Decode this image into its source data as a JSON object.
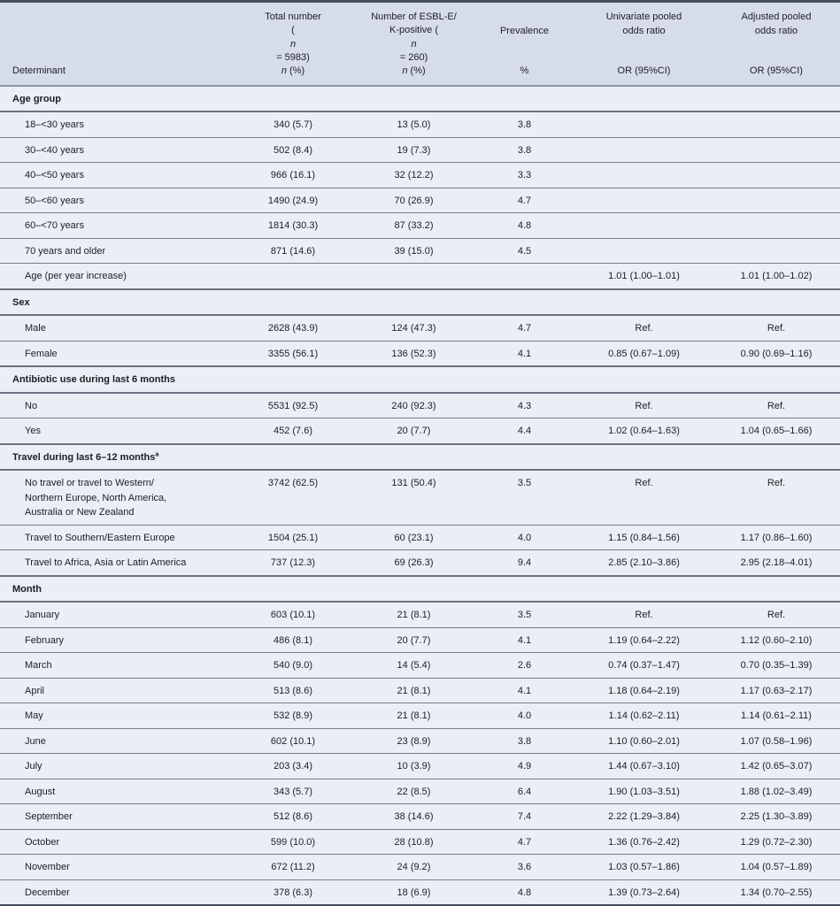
{
  "meta": {
    "content_type": "journal-article statistical table",
    "colors": {
      "header_band_bg": "#d7dcea",
      "body_bg": "#ebeef5",
      "frame_rule": "#464d5b",
      "row_rule": "#767c89",
      "section_rule": "#6b7180",
      "text": "#1b1e24"
    }
  },
  "table": {
    "header": {
      "columns": [
        {
          "id": "determinant",
          "title": "",
          "sub": "Determinant"
        },
        {
          "id": "total-number",
          "title": "Total number\n(*n* = 5983)",
          "sub": "*n* (%)"
        },
        {
          "id": "esbl-positive",
          "title": "Number of ESBL-E/\nK-positive (*n* = 260)",
          "sub": "*n* (%)"
        },
        {
          "id": "prevalence",
          "title": "Prevalence",
          "sub": "%"
        },
        {
          "id": "univariate-or",
          "title": "Univariate pooled\nodds ratio",
          "sub": "OR (95%CI)"
        },
        {
          "id": "adjusted-or",
          "title": "Adjusted pooled\nodds ratio",
          "sub": "OR (95%CI)"
        }
      ]
    },
    "sections": [
      {
        "title": "Age group",
        "sup": "",
        "rows": [
          {
            "label": "18–<30 years",
            "cells": [
              "340 (5.7)",
              "13 (5.0)",
              "3.8",
              "",
              ""
            ]
          },
          {
            "label": "30–<40 years",
            "cells": [
              "502 (8.4)",
              "19 (7.3)",
              "3.8",
              "",
              ""
            ]
          },
          {
            "label": "40–<50 years",
            "cells": [
              "966 (16.1)",
              "32 (12.2)",
              "3.3",
              "",
              ""
            ]
          },
          {
            "label": "50–<60 years",
            "cells": [
              "1490 (24.9)",
              "70 (26.9)",
              "4.7",
              "",
              ""
            ]
          },
          {
            "label": "60–<70 years",
            "cells": [
              "1814 (30.3)",
              "87 (33.2)",
              "4.8",
              "",
              ""
            ]
          },
          {
            "label": "70 years and older",
            "cells": [
              "871 (14.6)",
              "39 (15.0)",
              "4.5",
              "",
              ""
            ]
          },
          {
            "label": "Age (per year increase)",
            "cells": [
              "",
              "",
              "",
              "1.01 (1.00–1.01)",
              "1.01 (1.00–1.02)"
            ]
          }
        ]
      },
      {
        "title": "Sex",
        "sup": "",
        "rows": [
          {
            "label": "Male",
            "cells": [
              "2628 (43.9)",
              "124 (47.3)",
              "4.7",
              "Ref.",
              "Ref."
            ]
          },
          {
            "label": "Female",
            "cells": [
              "3355 (56.1)",
              "136 (52.3)",
              "4.1",
              "0.85 (0.67–1.09)",
              "0.90 (0.69–1.16)"
            ]
          }
        ]
      },
      {
        "title": "Antibiotic use during last 6 months",
        "sup": "",
        "rows": [
          {
            "label": "No",
            "cells": [
              "5531 (92.5)",
              "240 (92.3)",
              "4.3",
              "Ref.",
              "Ref."
            ]
          },
          {
            "label": "Yes",
            "cells": [
              "452 (7.6)",
              "20 (7.7)",
              "4.4",
              "1.02 (0.64–1.63)",
              "1.04 (0.65–1.66)"
            ]
          }
        ]
      },
      {
        "title": "Travel during last 6–12 months",
        "sup": "a",
        "rows": [
          {
            "label": "No travel or travel to Western/\nNorthern Europe, North America,\nAustralia or New Zealand",
            "cells": [
              "3742 (62.5)",
              "131 (50.4)",
              "3.5",
              "Ref.",
              "Ref."
            ]
          },
          {
            "label": "Travel to Southern/Eastern Europe",
            "cells": [
              "1504 (25.1)",
              "60 (23.1)",
              "4.0",
              "1.15 (0.84–1.56)",
              "1.17 (0.86–1.60)"
            ]
          },
          {
            "label": "Travel to Africa, Asia or Latin America",
            "cells": [
              "737 (12.3)",
              "69 (26.3)",
              "9.4",
              "2.85 (2.10–3.86)",
              "2.95 (2.18–4.01)"
            ]
          }
        ]
      },
      {
        "title": "Month",
        "sup": "",
        "rows": [
          {
            "label": "January",
            "cells": [
              "603 (10.1)",
              "21 (8.1)",
              "3.5",
              "Ref.",
              "Ref."
            ]
          },
          {
            "label": "February",
            "cells": [
              "486 (8.1)",
              "20 (7.7)",
              "4.1",
              "1.19 (0.64–2.22)",
              "1.12 (0.60–2.10)"
            ]
          },
          {
            "label": "March",
            "cells": [
              "540 (9.0)",
              "14 (5.4)",
              "2.6",
              "0.74 (0.37–1.47)",
              "0.70 (0.35–1.39)"
            ]
          },
          {
            "label": "April",
            "cells": [
              "513 (8.6)",
              "21 (8.1)",
              "4.1",
              "1.18 (0.64–2.19)",
              "1.17 (0.63–2.17)"
            ]
          },
          {
            "label": "May",
            "cells": [
              "532 (8.9)",
              "21 (8.1)",
              "4.0",
              "1.14 (0.62–2.11)",
              "1.14 (0.61–2.11)"
            ]
          },
          {
            "label": "June",
            "cells": [
              "602 (10.1)",
              "23 (8.9)",
              "3.8",
              "1.10 (0.60–2.01)",
              "1.07 (0.58–1.96)"
            ]
          },
          {
            "label": "July",
            "cells": [
              "203 (3.4)",
              "10 (3.9)",
              "4.9",
              "1.44 (0.67–3.10)",
              "1.42 (0.65–3.07)"
            ]
          },
          {
            "label": "August",
            "cells": [
              "343 (5.7)",
              "22 (8.5)",
              "6.4",
              "1.90 (1.03–3.51)",
              "1.88 (1.02–3.49)"
            ]
          },
          {
            "label": "September",
            "cells": [
              "512 (8.6)",
              "38 (14.6)",
              "7.4",
              "2.22 (1.29–3.84)",
              "2.25 (1.30–3.89)"
            ]
          },
          {
            "label": "October",
            "cells": [
              "599 (10.0)",
              "28 (10.8)",
              "4.7",
              "1.36 (0.76–2.42)",
              "1.29 (0.72–2.30)"
            ]
          },
          {
            "label": "November",
            "cells": [
              "672 (11.2)",
              "24 (9.2)",
              "3.6",
              "1.03 (0.57–1.86)",
              "1.04 (0.57–1.89)"
            ]
          },
          {
            "label": "December",
            "cells": [
              "378 (6.3)",
              "18 (6.9)",
              "4.8",
              "1.39 (0.73–2.64)",
              "1.34 (0.70–2.55)"
            ]
          }
        ]
      }
    ]
  }
}
